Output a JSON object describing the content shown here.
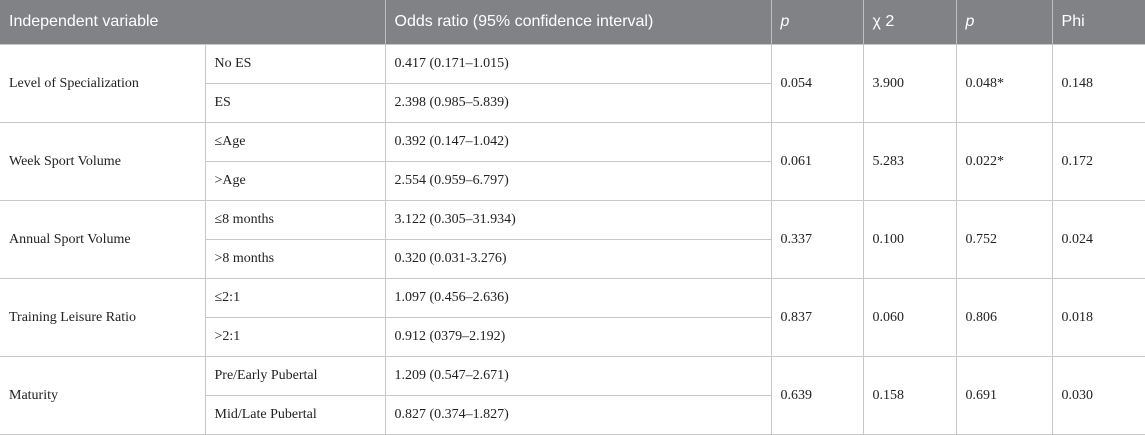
{
  "headers": {
    "independent_variable": "Independent variable",
    "odds_ratio": "Odds ratio (95% confidence interval)",
    "p1": "p",
    "chi2": "χ 2",
    "p2": "p",
    "phi": "Phi"
  },
  "rows": [
    {
      "variable": "Level of Specialization",
      "levels": [
        {
          "level": "No ES",
          "odds": "0.417 (0.171–1.015)"
        },
        {
          "level": "ES",
          "odds": "2.398 (0.985–5.839)"
        }
      ],
      "p1": "0.054",
      "chi2": "3.900",
      "p2": "0.048*",
      "phi": "0.148"
    },
    {
      "variable": "Week Sport Volume",
      "levels": [
        {
          "level": "≤Age",
          "odds": "0.392 (0.147–1.042)"
        },
        {
          "level": ">Age",
          "odds": "2.554 (0.959–6.797)"
        }
      ],
      "p1": "0.061",
      "chi2": "5.283",
      "p2": "0.022*",
      "phi": "0.172"
    },
    {
      "variable": "Annual Sport Volume",
      "levels": [
        {
          "level": "≤8 months",
          "odds": "3.122 (0.305–31.934)"
        },
        {
          "level": ">8 months",
          "odds": "0.320 (0.031-3.276)"
        }
      ],
      "p1": "0.337",
      "chi2": "0.100",
      "p2": "0.752",
      "phi": "0.024"
    },
    {
      "variable": "Training Leisure Ratio",
      "levels": [
        {
          "level": "≤2:1",
          "odds": "1.097 (0.456–2.636)"
        },
        {
          "level": ">2:1",
          "odds": "0.912 (0379–2.192)"
        }
      ],
      "p1": "0.837",
      "chi2": "0.060",
      "p2": "0.806",
      "phi": "0.018"
    },
    {
      "variable": "Maturity",
      "levels": [
        {
          "level": "Pre/Early Pubertal",
          "odds": "1.209 (0.547–2.671)"
        },
        {
          "level": "Mid/Late Pubertal",
          "odds": "0.827 (0.374–1.827)"
        }
      ],
      "p1": "0.639",
      "chi2": "0.158",
      "p2": "0.691",
      "phi": "0.030"
    }
  ]
}
